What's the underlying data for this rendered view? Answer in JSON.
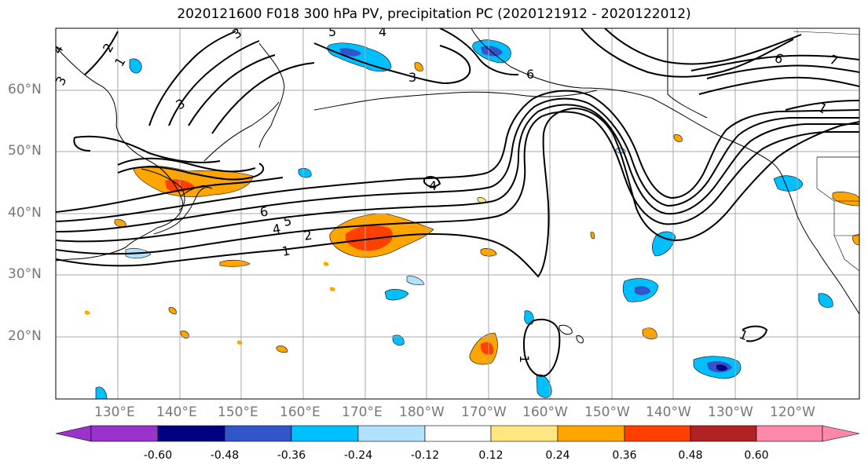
{
  "title": "2020121600 F018 300 hPa PV, precipitation PC (2020121912 - 2020122012)",
  "latitude_labels": [
    "60°N",
    "50°N",
    "40°N",
    "30°N",
    "20°N"
  ],
  "longitude_labels": [
    "130°E",
    "140°E",
    "150°E",
    "160°E",
    "170°E",
    "180°W",
    "170°W",
    "160°W",
    "150°W",
    "140°W",
    "130°W",
    "120°W"
  ],
  "contour_labels": [
    "1",
    "2",
    "3",
    "4",
    "5",
    "6",
    "7"
  ],
  "colorbar": {
    "colors": [
      "#9a33cc",
      "#000080",
      "#3355cc",
      "#00bfff",
      "#b0e2ff",
      "#ffffff",
      "#ffe680",
      "#ffa500",
      "#ff4000",
      "#b22222",
      "#ff88aa"
    ],
    "labels": [
      "-0.60",
      "-0.48",
      "-0.36",
      "-0.24",
      "-0.12",
      "0.12",
      "0.24",
      "0.36",
      "0.48",
      "0.60"
    ]
  },
  "map_colors": {
    "background": "#ffffff",
    "grid": "#a8a8a8",
    "coast": "#000000",
    "contour": "#000000"
  }
}
